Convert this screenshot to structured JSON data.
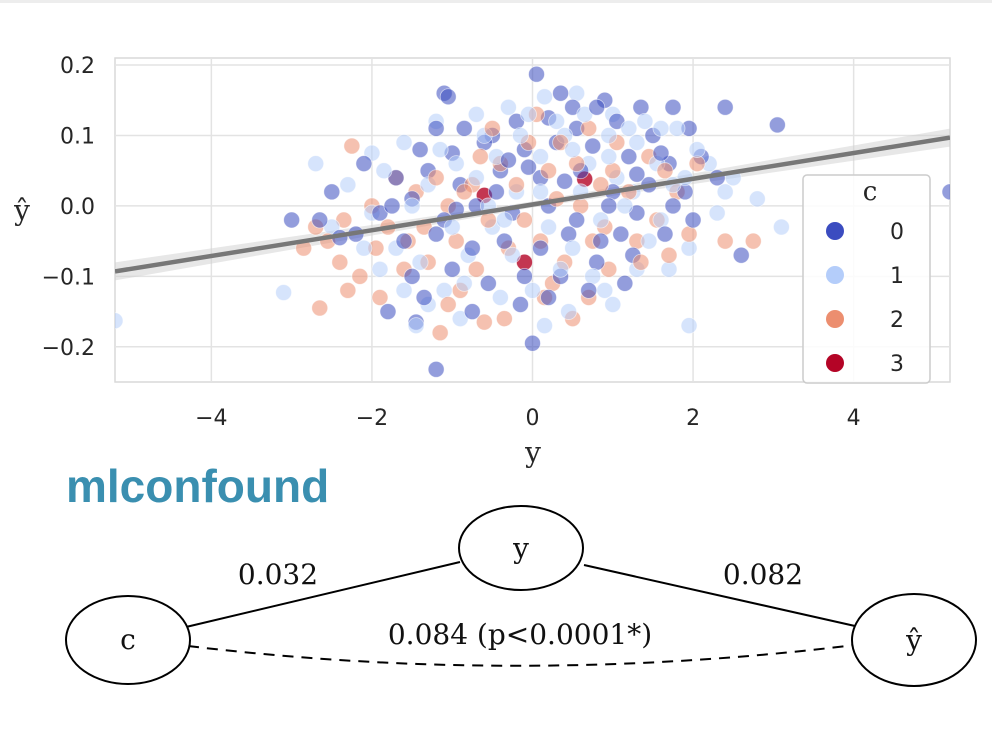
{
  "brand": "mlconfound",
  "chart_data": {
    "type": "scatter",
    "xlabel": "y",
    "ylabel": "ŷ",
    "xlim": [
      -5.2,
      5.2
    ],
    "ylim": [
      -0.25,
      0.21
    ],
    "x_ticks": [
      "−4",
      "−2",
      "0",
      "2",
      "4"
    ],
    "x_tick_values": [
      -4,
      -2,
      0,
      2,
      4
    ],
    "y_ticks": [
      "0.2",
      "0.1",
      "0.0",
      "−0.1",
      "−0.2"
    ],
    "y_tick_values": [
      0.2,
      0.1,
      0.0,
      -0.1,
      -0.2
    ],
    "grid": true,
    "legend": {
      "title": "c",
      "placement": "lower-right",
      "entries": [
        {
          "label": "0",
          "color": "#3b4cc0"
        },
        {
          "label": "1",
          "color": "#b4cdfa"
        },
        {
          "label": "2",
          "color": "#ec8e6f"
        },
        {
          "label": "3",
          "color": "#b40426"
        }
      ]
    },
    "regression_line": {
      "x": [
        -5.2,
        5.2
      ],
      "y": [
        -0.093,
        0.097
      ],
      "color": "#777777"
    },
    "series": [
      {
        "label": "0",
        "color": "#3b4cc0",
        "points": [
          [
            0.05,
            0.187
          ],
          [
            -1.1,
            0.16
          ],
          [
            -1.05,
            0.155
          ],
          [
            0.9,
            0.15
          ],
          [
            1.35,
            0.14
          ],
          [
            1.75,
            0.14
          ],
          [
            2.4,
            0.14
          ],
          [
            3.05,
            0.115
          ],
          [
            1.95,
            0.11
          ],
          [
            0.35,
            0.16
          ],
          [
            0.5,
            0.14
          ],
          [
            -1.2,
            0.11
          ],
          [
            -0.85,
            0.11
          ],
          [
            -0.5,
            0.1
          ],
          [
            -0.2,
            0.12
          ],
          [
            0.2,
            0.125
          ],
          [
            0.55,
            0.11
          ],
          [
            1.05,
            0.12
          ],
          [
            1.5,
            0.1
          ],
          [
            -1.4,
            0.08
          ],
          [
            -1.0,
            0.075
          ],
          [
            -0.6,
            0.09
          ],
          [
            -0.1,
            0.08
          ],
          [
            0.3,
            0.09
          ],
          [
            0.75,
            0.085
          ],
          [
            1.2,
            0.07
          ],
          [
            1.7,
            0.06
          ],
          [
            2.1,
            0.07
          ],
          [
            -2.1,
            0.06
          ],
          [
            -1.7,
            0.04
          ],
          [
            -1.3,
            0.05
          ],
          [
            -0.9,
            0.03
          ],
          [
            -0.4,
            0.05
          ],
          [
            0.1,
            0.04
          ],
          [
            0.6,
            0.05
          ],
          [
            1.0,
            0.02
          ],
          [
            1.45,
            0.03
          ],
          [
            1.9,
            0.02
          ],
          [
            2.3,
            0.04
          ],
          [
            -2.5,
            0.02
          ],
          [
            -1.9,
            -0.01
          ],
          [
            -1.5,
            0.01
          ],
          [
            -1.1,
            -0.02
          ],
          [
            -0.7,
            0.0
          ],
          [
            -0.25,
            -0.01
          ],
          [
            0.2,
            0.0
          ],
          [
            0.55,
            -0.02
          ],
          [
            0.95,
            0.0
          ],
          [
            1.3,
            -0.01
          ],
          [
            1.75,
            0.0
          ],
          [
            -3.0,
            -0.02
          ],
          [
            -2.65,
            -0.02
          ],
          [
            -2.2,
            -0.04
          ],
          [
            -1.6,
            -0.05
          ],
          [
            -1.2,
            -0.04
          ],
          [
            -0.75,
            -0.06
          ],
          [
            -0.35,
            -0.05
          ],
          [
            0.1,
            -0.06
          ],
          [
            0.45,
            -0.04
          ],
          [
            0.85,
            -0.05
          ],
          [
            1.25,
            -0.07
          ],
          [
            1.65,
            -0.04
          ],
          [
            2.6,
            -0.07
          ],
          [
            -1.5,
            -0.1
          ],
          [
            -1.0,
            -0.09
          ],
          [
            -0.55,
            -0.11
          ],
          [
            -0.1,
            -0.1
          ],
          [
            0.35,
            -0.1
          ],
          [
            0.8,
            -0.08
          ],
          [
            1.15,
            -0.11
          ],
          [
            -1.35,
            -0.13
          ],
          [
            -0.75,
            -0.15
          ],
          [
            -0.15,
            -0.14
          ],
          [
            0.2,
            -0.13
          ],
          [
            -1.8,
            -0.15
          ],
          [
            -1.45,
            -0.165
          ],
          [
            0.0,
            -0.195
          ],
          [
            -1.2,
            -0.232
          ],
          [
            0.4,
            0.035
          ],
          [
            -0.45,
            0.02
          ],
          [
            1.6,
            0.075
          ],
          [
            -0.05,
            0.055
          ],
          [
            -1.75,
            0.0
          ],
          [
            0.7,
            -0.12
          ],
          [
            1.3,
            0.045
          ],
          [
            -0.95,
            -0.005
          ],
          [
            2.0,
            -0.02
          ],
          [
            -2.4,
            -0.045
          ],
          [
            5.2,
            0.02
          ],
          [
            0.8,
            0.14
          ],
          [
            -0.3,
            0.065
          ],
          [
            1.1,
            -0.04
          ]
        ]
      },
      {
        "label": "1",
        "color": "#b4cdfa",
        "points": [
          [
            -5.2,
            -0.163
          ],
          [
            -3.1,
            -0.123
          ],
          [
            -2.0,
            0.075
          ],
          [
            -1.6,
            0.09
          ],
          [
            -1.2,
            0.12
          ],
          [
            -0.7,
            0.13
          ],
          [
            -0.3,
            0.14
          ],
          [
            0.15,
            0.155
          ],
          [
            0.55,
            0.16
          ],
          [
            1.0,
            0.13
          ],
          [
            1.4,
            0.12
          ],
          [
            1.8,
            0.11
          ],
          [
            2.2,
            0.06
          ],
          [
            2.5,
            0.04
          ],
          [
            2.8,
            0.01
          ],
          [
            3.1,
            -0.03
          ],
          [
            2.3,
            -0.01
          ],
          [
            1.95,
            -0.06
          ],
          [
            1.7,
            -0.09
          ],
          [
            -2.3,
            0.03
          ],
          [
            -2.0,
            -0.01
          ],
          [
            -1.7,
            -0.06
          ],
          [
            -1.4,
            -0.08
          ],
          [
            -1.1,
            -0.12
          ],
          [
            -0.8,
            -0.07
          ],
          [
            -0.5,
            -0.03
          ],
          [
            -0.2,
            0.02
          ],
          [
            0.1,
            0.07
          ],
          [
            0.4,
            0.1
          ],
          [
            0.7,
            0.06
          ],
          [
            1.05,
            0.04
          ],
          [
            1.3,
            0.09
          ],
          [
            1.55,
            0.06
          ],
          [
            -1.85,
            0.05
          ],
          [
            -1.3,
            0.03
          ],
          [
            -0.95,
            0.06
          ],
          [
            -0.6,
            0.1
          ],
          [
            -0.15,
            0.1
          ],
          [
            0.3,
            0.12
          ],
          [
            0.65,
            0.13
          ],
          [
            0.95,
            0.1
          ],
          [
            1.25,
            0.02
          ],
          [
            1.6,
            -0.02
          ],
          [
            1.9,
            0.04
          ],
          [
            -2.5,
            -0.03
          ],
          [
            -2.1,
            -0.06
          ],
          [
            -1.6,
            -0.12
          ],
          [
            -1.3,
            -0.14
          ],
          [
            -0.9,
            -0.16
          ],
          [
            -0.4,
            -0.13
          ],
          [
            0.0,
            -0.12
          ],
          [
            0.45,
            -0.15
          ],
          [
            0.9,
            -0.12
          ],
          [
            1.3,
            -0.09
          ],
          [
            1.95,
            -0.17
          ],
          [
            -1.5,
            0.0
          ],
          [
            -1.0,
            -0.03
          ],
          [
            -0.55,
            0.0
          ],
          [
            0.2,
            -0.03
          ],
          [
            0.5,
            -0.06
          ],
          [
            0.85,
            -0.02
          ],
          [
            1.15,
            0.0
          ],
          [
            1.45,
            -0.05
          ],
          [
            -0.25,
            -0.07
          ],
          [
            0.1,
            0.02
          ],
          [
            -0.7,
            0.04
          ],
          [
            0.6,
            0.02
          ],
          [
            -1.15,
            0.08
          ],
          [
            0.35,
            -0.09
          ],
          [
            -0.45,
            0.07
          ],
          [
            1.75,
            0.03
          ],
          [
            2.05,
            0.08
          ],
          [
            -1.9,
            -0.09
          ],
          [
            0.75,
            -0.1
          ],
          [
            -0.05,
            0.13
          ],
          [
            1.2,
            0.11
          ],
          [
            -2.7,
            0.06
          ],
          [
            -1.45,
            -0.17
          ],
          [
            2.4,
            0.02
          ],
          [
            0.15,
            -0.17
          ],
          [
            -0.85,
            -0.11
          ],
          [
            1.0,
            -0.14
          ],
          [
            1.6,
            0.11
          ],
          [
            0.5,
            0.08
          ],
          [
            -0.35,
            -0.02
          ],
          [
            0.95,
            0.07
          ]
        ]
      },
      {
        "label": "2",
        "color": "#ec8e6f",
        "points": [
          [
            -2.25,
            0.085
          ],
          [
            -1.7,
            0.04
          ],
          [
            -1.45,
            0.02
          ],
          [
            -2.0,
            0.0
          ],
          [
            -2.35,
            -0.02
          ],
          [
            -2.7,
            -0.03
          ],
          [
            -2.85,
            -0.06
          ],
          [
            -2.4,
            -0.08
          ],
          [
            -2.15,
            -0.1
          ],
          [
            -2.3,
            -0.12
          ],
          [
            -2.65,
            -0.145
          ],
          [
            -1.95,
            -0.06
          ],
          [
            -1.6,
            -0.09
          ],
          [
            -1.3,
            -0.08
          ],
          [
            -1.15,
            -0.18
          ],
          [
            -0.9,
            -0.12
          ],
          [
            -0.6,
            -0.165
          ],
          [
            -0.35,
            -0.16
          ],
          [
            0.15,
            -0.13
          ],
          [
            0.5,
            -0.16
          ],
          [
            0.95,
            -0.09
          ],
          [
            1.3,
            -0.05
          ],
          [
            1.55,
            -0.02
          ],
          [
            1.95,
            -0.04
          ],
          [
            2.4,
            -0.05
          ],
          [
            2.75,
            -0.05
          ],
          [
            1.8,
            0.02
          ],
          [
            1.45,
            0.07
          ],
          [
            1.05,
            0.09
          ],
          [
            0.7,
            0.11
          ],
          [
            0.35,
            0.09
          ],
          [
            -0.05,
            0.09
          ],
          [
            -0.4,
            0.06
          ],
          [
            -0.75,
            0.03
          ],
          [
            -1.05,
            0.0
          ],
          [
            -1.35,
            -0.03
          ],
          [
            -0.95,
            -0.05
          ],
          [
            -0.55,
            -0.02
          ],
          [
            -0.2,
            0.03
          ],
          [
            0.2,
            0.05
          ],
          [
            0.6,
            0.0
          ],
          [
            0.9,
            -0.03
          ],
          [
            1.2,
            0.02
          ],
          [
            1.65,
            0.05
          ],
          [
            2.05,
            0.06
          ],
          [
            -1.8,
            -0.03
          ],
          [
            -0.7,
            -0.09
          ],
          [
            -0.3,
            -0.06
          ],
          [
            0.1,
            -0.05
          ],
          [
            0.4,
            -0.08
          ],
          [
            0.75,
            -0.05
          ],
          [
            -1.55,
            -0.05
          ],
          [
            -0.85,
            0.02
          ],
          [
            0.3,
            0.01
          ],
          [
            1.0,
            0.05
          ],
          [
            -0.1,
            -0.02
          ],
          [
            0.55,
            0.06
          ],
          [
            -1.2,
            0.04
          ],
          [
            0.05,
            0.13
          ],
          [
            -0.5,
            0.11
          ],
          [
            1.35,
            -0.08
          ],
          [
            -2.55,
            -0.05
          ],
          [
            -1.9,
            -0.13
          ],
          [
            0.85,
            0.03
          ],
          [
            1.7,
            -0.07
          ],
          [
            -0.65,
            0.07
          ],
          [
            0.25,
            -0.11
          ],
          [
            0.7,
            -0.13
          ],
          [
            -1.05,
            -0.14
          ]
        ]
      },
      {
        "label": "3",
        "color": "#b40426",
        "points": [
          [
            0.65,
            0.038
          ],
          [
            -0.6,
            0.015
          ],
          [
            -0.1,
            -0.08
          ]
        ]
      }
    ]
  },
  "diagram": {
    "nodes": {
      "c": "c",
      "y": "y",
      "yhat": "ŷ"
    },
    "edges": {
      "c_y": "0.032",
      "y_yhat": "0.082",
      "c_yhat": "0.084 (p<0.0001*)"
    }
  }
}
